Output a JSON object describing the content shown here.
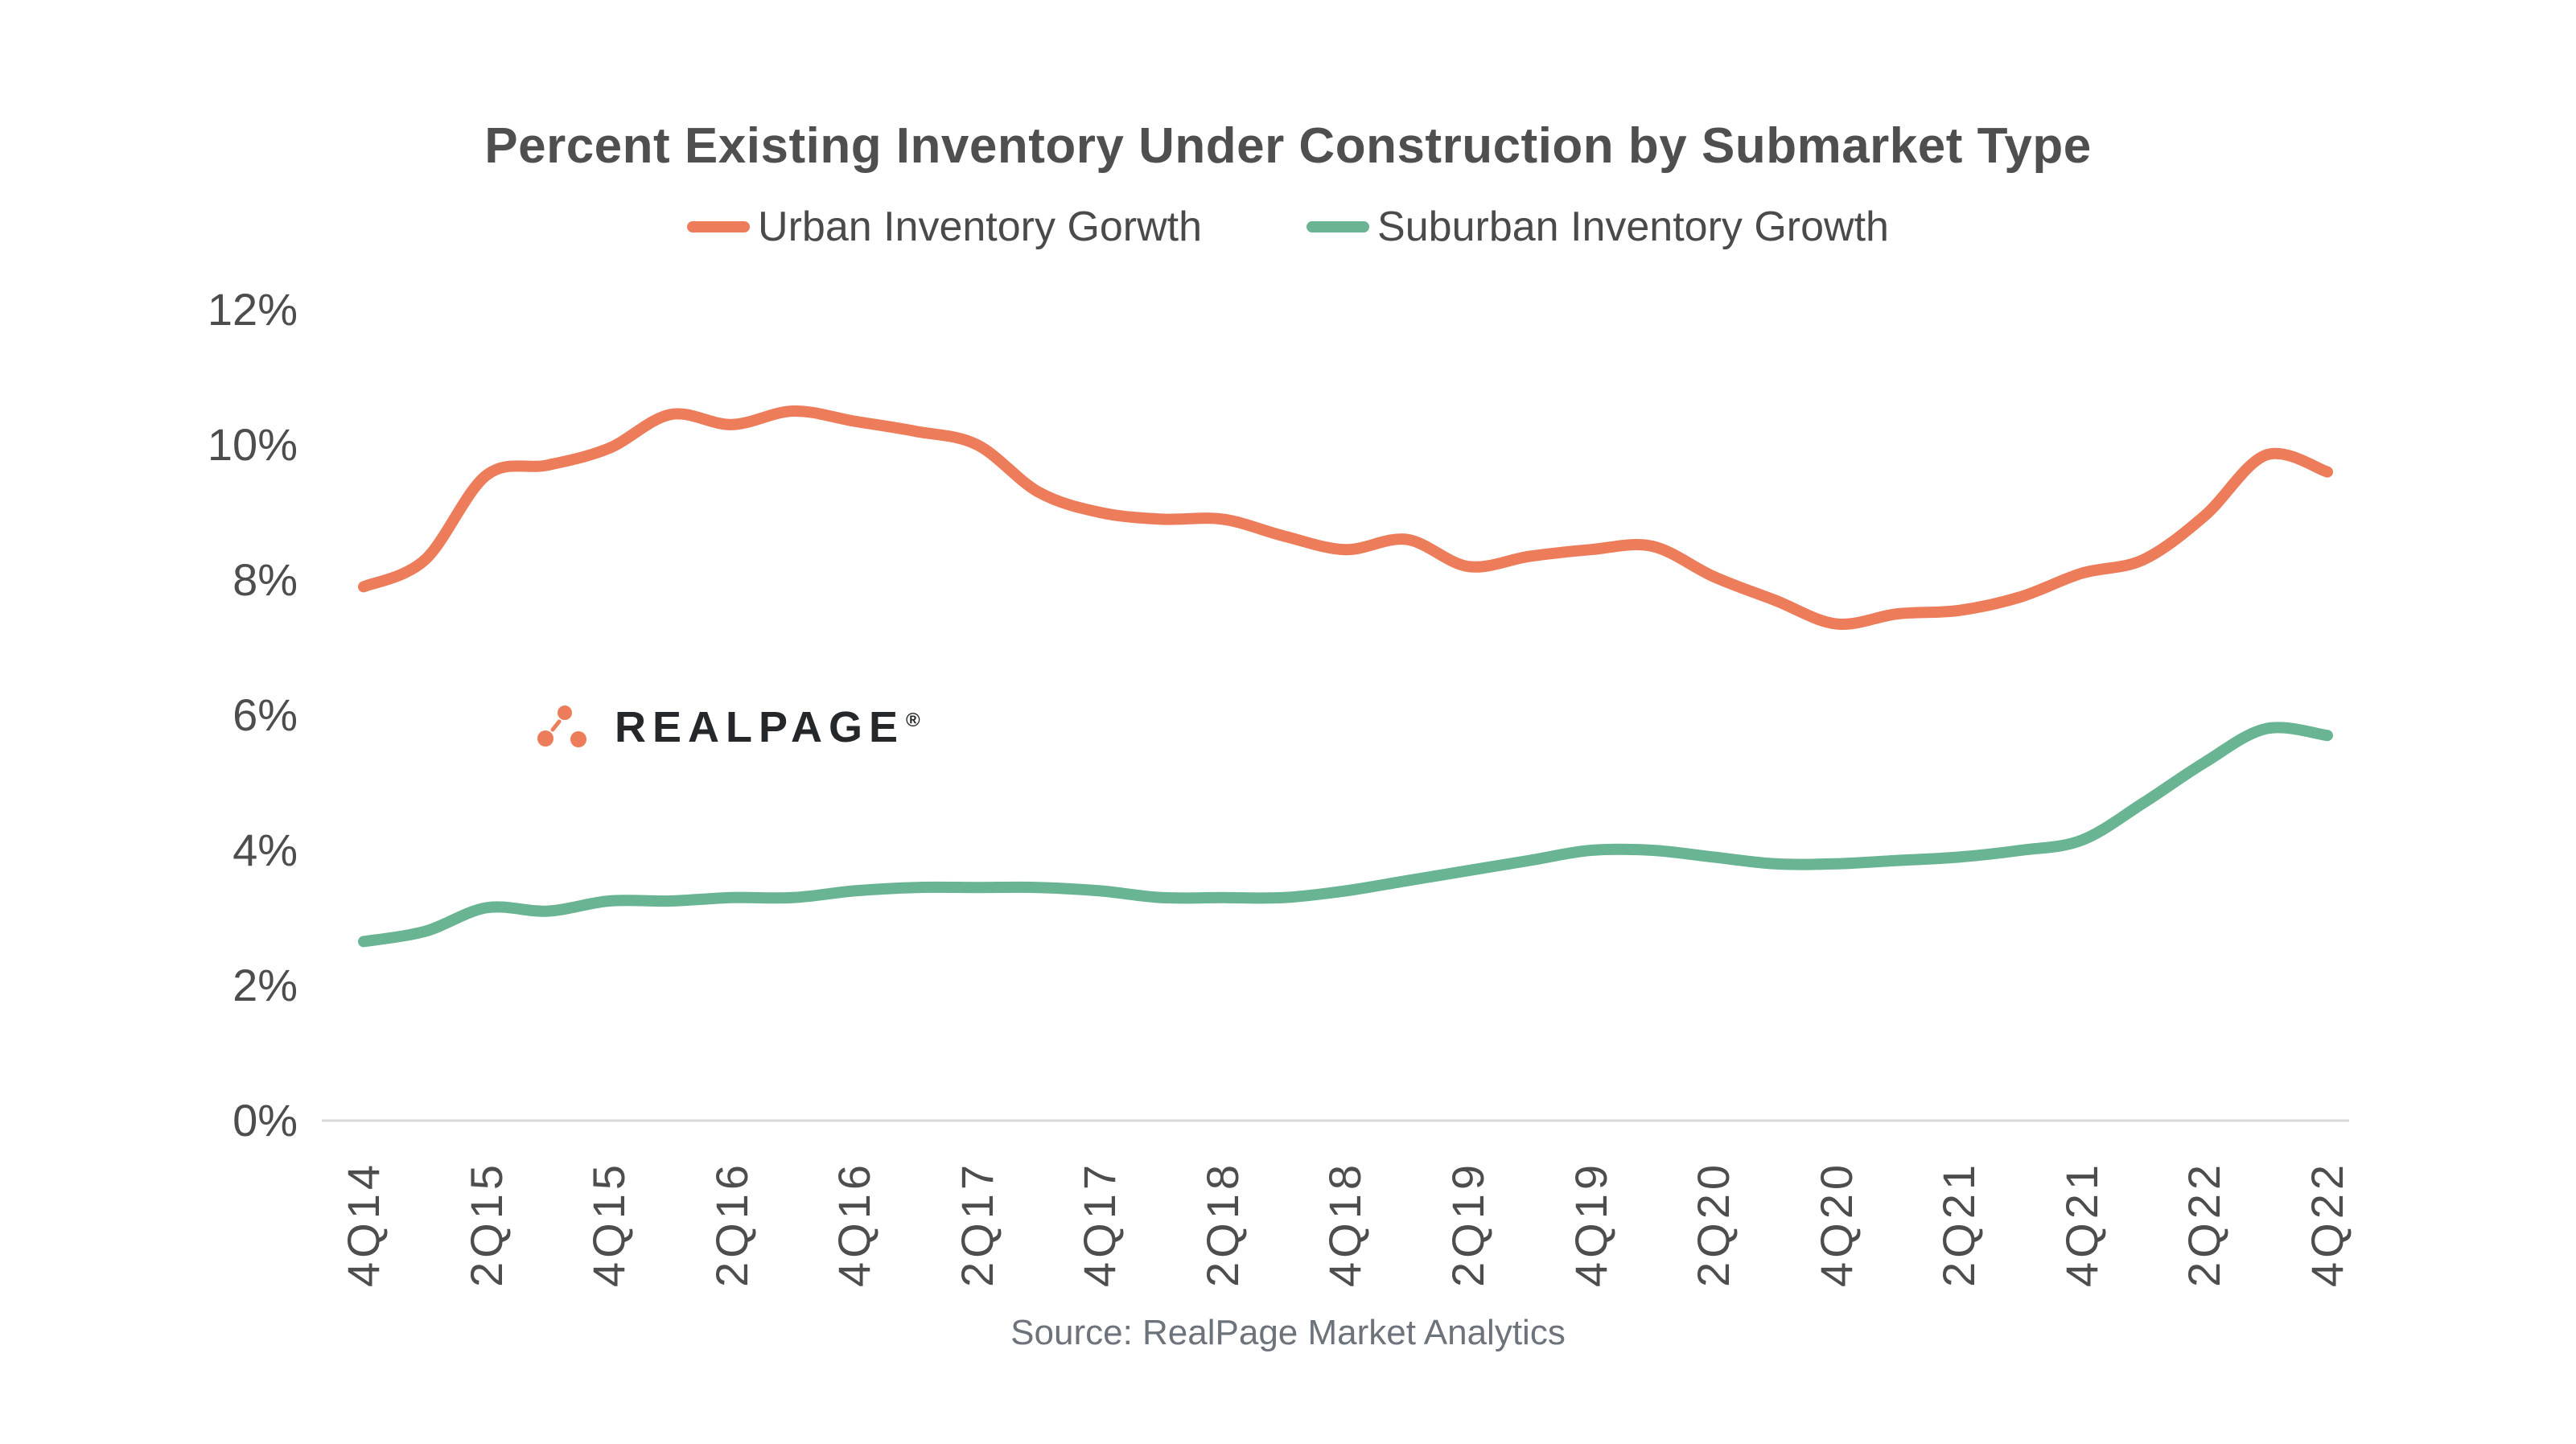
{
  "title": "Percent Existing Inventory Under Construction by Submarket Type",
  "legend": {
    "urban": {
      "label": "Urban Inventory Gorwth",
      "color": "#EC7C5A"
    },
    "suburban": {
      "label": "Suburban Inventory Growth",
      "color": "#68B493"
    }
  },
  "logo": {
    "text": "REALPAGE",
    "registered": "®",
    "dot_color": "#EC7C5A",
    "text_color": "#24282B"
  },
  "source": "Source: RealPage Market Analytics",
  "y_axis": {
    "labels": [
      "12%",
      "10%",
      "8%",
      "6%",
      "4%",
      "2%",
      "0%"
    ],
    "min": 0,
    "max": 12,
    "step": 2
  },
  "x_axis": {
    "tick_labels": [
      "4Q14",
      "2Q15",
      "4Q15",
      "2Q16",
      "4Q16",
      "2Q17",
      "4Q17",
      "2Q18",
      "4Q18",
      "2Q19",
      "4Q19",
      "2Q20",
      "4Q20",
      "2Q21",
      "4Q21",
      "2Q22",
      "4Q22"
    ]
  },
  "chart_data": {
    "type": "line",
    "title": "Percent Existing Inventory Under Construction by Submarket Type",
    "xlabel": "",
    "ylabel": "",
    "ylim": [
      0,
      12
    ],
    "grid": false,
    "legend_position": "top",
    "x": [
      "4Q14",
      "1Q15",
      "2Q15",
      "3Q15",
      "4Q15",
      "1Q16",
      "2Q16",
      "3Q16",
      "4Q16",
      "1Q17",
      "2Q17",
      "3Q17",
      "4Q17",
      "1Q18",
      "2Q18",
      "3Q18",
      "4Q18",
      "1Q19",
      "2Q19",
      "3Q19",
      "4Q19",
      "1Q20",
      "2Q20",
      "3Q20",
      "4Q20",
      "1Q21",
      "2Q21",
      "3Q21",
      "4Q21",
      "1Q22",
      "2Q22",
      "3Q22",
      "4Q22"
    ],
    "series": [
      {
        "name": "Urban Inventory Gorwth",
        "color": "#EC7C5A",
        "values": [
          7.9,
          8.3,
          9.55,
          9.7,
          9.95,
          10.45,
          10.3,
          10.5,
          10.35,
          10.2,
          10.0,
          9.3,
          9.0,
          8.9,
          8.9,
          8.65,
          8.45,
          8.6,
          8.2,
          8.35,
          8.45,
          8.5,
          8.05,
          7.7,
          7.35,
          7.5,
          7.55,
          7.75,
          8.1,
          8.3,
          8.95,
          9.85,
          9.6
        ]
      },
      {
        "name": "Suburban Inventory Growth",
        "color": "#68B493",
        "values": [
          2.65,
          2.8,
          3.15,
          3.1,
          3.25,
          3.25,
          3.3,
          3.3,
          3.4,
          3.45,
          3.45,
          3.45,
          3.4,
          3.3,
          3.3,
          3.3,
          3.4,
          3.55,
          3.7,
          3.85,
          4.0,
          4.0,
          3.9,
          3.8,
          3.8,
          3.85,
          3.9,
          4.0,
          4.15,
          4.7,
          5.3,
          5.8,
          5.7
        ]
      }
    ]
  }
}
